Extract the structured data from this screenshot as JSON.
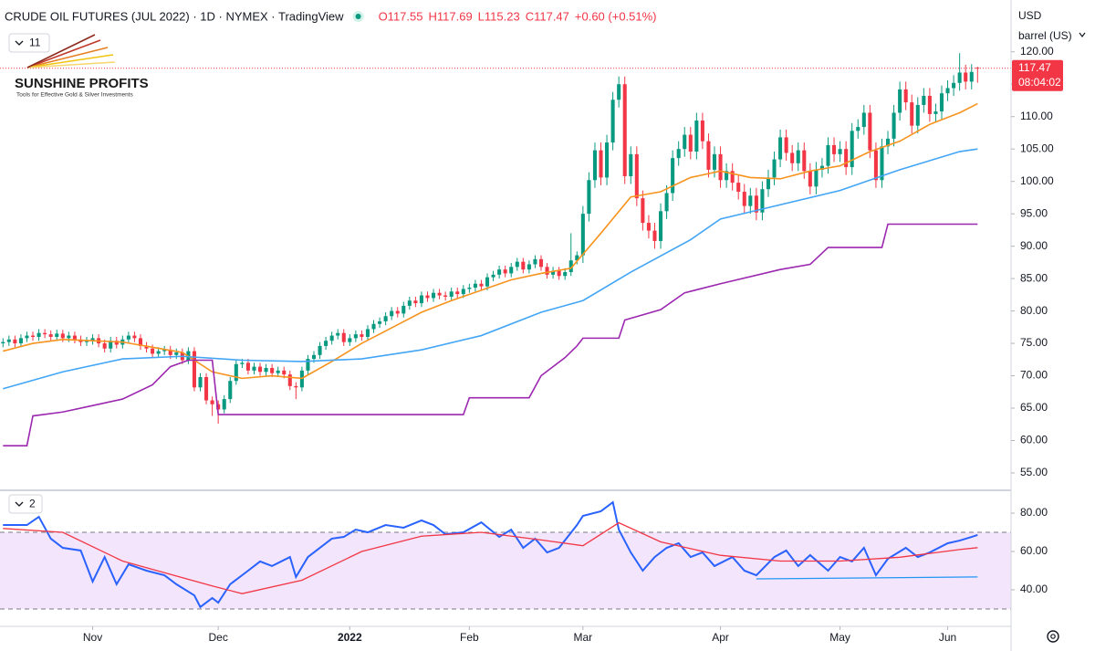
{
  "logo": {
    "name": "SUNSHINE PROFITS",
    "tagline": "Tools for Effective Gold & Silver Investments"
  },
  "chart_data": [
    {
      "type": "candlestick",
      "title": "CRUDE OIL FUTURES (JUL 2022) · 1D · NYMEX · TradingView",
      "legend_values": [
        "O117.55",
        "H117.69",
        "L115.23",
        "C117.47",
        "+0.60 (+0.51%)"
      ],
      "currency": "USD",
      "unit": "barrel (US)",
      "indicator_count": "11",
      "countdown": "08:04:02",
      "colors": {
        "up": "#089981",
        "down": "#f23645",
        "legend": "#f23645"
      },
      "xlim": [
        -0.5,
        168.6
      ],
      "xticks": [
        {
          "value": 15,
          "label": "Nov"
        },
        {
          "value": 36,
          "label": "Dec"
        },
        {
          "value": 58,
          "label": "2022"
        },
        {
          "value": 78,
          "label": "Feb"
        },
        {
          "value": 97,
          "label": "Mar"
        },
        {
          "value": 120,
          "label": "Apr"
        },
        {
          "value": 140,
          "label": "May"
        },
        {
          "value": 158,
          "label": "Jun"
        }
      ],
      "ylim": [
        52.6,
        128
      ],
      "yticks": [
        {
          "value": 55,
          "label": "55.00"
        },
        {
          "value": 60,
          "label": "60.00"
        },
        {
          "value": 65,
          "label": "65.00"
        },
        {
          "value": 70,
          "label": "70.00"
        },
        {
          "value": 75,
          "label": "75.00"
        },
        {
          "value": 80,
          "label": "80.00"
        },
        {
          "value": 85,
          "label": "85.00"
        },
        {
          "value": 90,
          "label": "90.00"
        },
        {
          "value": 95,
          "label": "95.00"
        },
        {
          "value": 100,
          "label": "100.00"
        },
        {
          "value": 105,
          "label": "105.00"
        },
        {
          "value": 110,
          "label": "110.00"
        },
        {
          "value": 115,
          "label": "115.00"
        },
        {
          "value": 120,
          "label": "120.00"
        }
      ],
      "open": [
        75.0,
        75.2,
        75.6,
        75.0,
        75.8,
        76.2,
        76.0,
        76.6,
        76.4,
        76.0,
        76.5,
        75.8,
        76.2,
        75.6,
        75.2,
        75.4,
        75.8,
        75.0,
        74.2,
        75.4,
        74.8,
        75.6,
        76.2,
        75.8,
        74.6,
        74.2,
        73.4,
        73.8,
        74.0,
        73.2,
        73.6,
        72.4,
        73.8,
        68.2,
        69.8,
        66.2,
        65.6,
        64.8,
        66.4,
        69.2,
        71.8,
        72.0,
        70.8,
        71.4,
        70.6,
        71.2,
        70.4,
        70.8,
        70.2,
        68.4,
        68.2,
        70.8,
        72.6,
        73.2,
        74.6,
        75.4,
        76.2,
        76.6,
        75.2,
        75.8,
        76.4,
        76.0,
        77.2,
        78.0,
        78.4,
        79.2,
        80.0,
        79.6,
        80.8,
        81.6,
        81.2,
        82.4,
        82.0,
        82.8,
        82.4,
        82.2,
        83.0,
        82.6,
        83.4,
        83.6,
        84.2,
        83.8,
        85.2,
        85.6,
        86.4,
        85.8,
        86.8,
        87.6,
        86.4,
        87.2,
        88.0,
        86.8,
        85.6,
        86.2,
        85.4,
        86.0,
        87.8,
        88.6,
        95.0,
        100.2,
        104.8,
        100.6,
        106.0,
        112.6,
        115.0,
        100.8,
        104.2,
        97.4,
        93.6,
        92.4,
        90.8,
        95.4,
        98.2,
        103.6,
        105.0,
        107.2,
        104.6,
        109.4,
        106.2,
        101.8,
        104.2,
        100.2,
        101.6,
        99.8,
        98.4,
        96.2,
        97.8,
        95.2,
        98.8,
        100.6,
        103.4,
        106.8,
        104.4,
        102.8,
        104.8,
        101.6,
        99.2,
        101.8,
        102.4,
        105.6,
        104.2,
        105.0,
        102.2,
        107.8,
        108.4,
        110.6,
        104.8,
        100.2,
        105.4,
        106.6,
        110.6,
        114.2,
        112.2,
        108.6,
        111.8,
        113.2,
        110.4,
        110.8,
        113.6,
        114.4,
        115.2,
        116.8,
        115.4,
        117.55
      ],
      "high": [
        75.8,
        76.2,
        76.2,
        76.4,
        76.8,
        76.8,
        77.2,
        77.2,
        77.0,
        77.1,
        77.1,
        76.8,
        76.8,
        76.2,
        76.0,
        76.4,
        76.4,
        75.6,
        76.0,
        76.0,
        76.2,
        76.8,
        76.8,
        76.4,
        75.2,
        74.8,
        74.4,
        74.6,
        74.6,
        74.2,
        74.2,
        74.4,
        74.4,
        70.4,
        70.4,
        66.8,
        66.2,
        67.0,
        69.8,
        72.4,
        72.6,
        72.6,
        72.0,
        72.0,
        71.8,
        71.8,
        71.4,
        71.4,
        70.8,
        69.0,
        71.4,
        73.2,
        73.8,
        75.2,
        76.0,
        76.8,
        77.2,
        77.2,
        76.4,
        77.0,
        77.0,
        77.8,
        78.6,
        79.0,
        79.8,
        80.6,
        80.6,
        81.4,
        82.2,
        82.2,
        83.0,
        83.0,
        83.4,
        83.4,
        83.0,
        83.6,
        83.6,
        84.0,
        84.2,
        84.8,
        84.8,
        85.8,
        86.2,
        87.0,
        87.0,
        87.4,
        88.2,
        88.2,
        87.8,
        88.6,
        88.6,
        87.4,
        86.8,
        86.8,
        86.6,
        92.0,
        89.2,
        96.2,
        101.4,
        106.0,
        106.0,
        107.2,
        113.8,
        116.2,
        116.2,
        105.4,
        105.4,
        98.6,
        94.8,
        93.6,
        96.6,
        99.4,
        104.8,
        106.2,
        108.4,
        108.4,
        110.6,
        110.6,
        107.4,
        105.4,
        105.4,
        102.8,
        102.8,
        101.0,
        99.6,
        99.0,
        99.0,
        100.0,
        101.8,
        104.6,
        108.0,
        108.0,
        105.6,
        106.0,
        106.0,
        102.8,
        103.0,
        103.6,
        106.8,
        106.8,
        106.2,
        106.2,
        109.0,
        109.6,
        111.8,
        111.8,
        106.0,
        106.6,
        107.8,
        111.8,
        115.4,
        115.4,
        113.4,
        113.0,
        114.4,
        114.4,
        112.0,
        114.8,
        115.6,
        116.4,
        119.8,
        118.0,
        118.1,
        117.69
      ],
      "low": [
        74.4,
        74.6,
        74.4,
        74.4,
        75.2,
        75.4,
        75.4,
        75.8,
        75.4,
        75.4,
        75.2,
        75.2,
        75.0,
        74.6,
        74.6,
        74.8,
        74.4,
        73.6,
        73.6,
        74.2,
        74.2,
        75.0,
        75.2,
        74.0,
        73.6,
        72.8,
        72.8,
        73.2,
        72.6,
        72.6,
        71.8,
        71.8,
        67.6,
        67.6,
        65.6,
        63.8,
        62.6,
        64.2,
        65.8,
        68.6,
        71.2,
        70.2,
        70.2,
        70.0,
        70.0,
        69.8,
        69.8,
        69.6,
        67.8,
        66.4,
        67.6,
        70.2,
        72.0,
        72.6,
        74.0,
        74.8,
        75.6,
        74.6,
        74.6,
        75.2,
        75.4,
        75.4,
        76.6,
        77.4,
        77.8,
        78.6,
        79.0,
        79.0,
        80.2,
        80.6,
        80.6,
        81.4,
        81.4,
        81.8,
        81.6,
        81.6,
        82.0,
        82.0,
        82.8,
        83.0,
        83.2,
        83.2,
        84.6,
        85.0,
        85.2,
        85.2,
        86.2,
        85.8,
        85.8,
        86.6,
        86.2,
        85.0,
        85.0,
        84.8,
        84.8,
        85.4,
        87.2,
        87.4,
        93.8,
        99.0,
        99.4,
        99.4,
        104.8,
        111.4,
        99.6,
        99.6,
        96.2,
        92.4,
        91.2,
        89.6,
        89.6,
        94.2,
        97.0,
        102.4,
        103.8,
        103.4,
        103.4,
        105.0,
        100.6,
        100.6,
        99.0,
        99.0,
        98.6,
        97.2,
        95.0,
        95.0,
        94.0,
        94.0,
        97.6,
        99.4,
        102.2,
        103.2,
        101.6,
        101.6,
        100.4,
        98.0,
        98.0,
        100.6,
        101.2,
        103.0,
        103.0,
        101.0,
        101.0,
        106.6,
        107.2,
        103.6,
        99.0,
        99.0,
        104.2,
        105.4,
        109.4,
        111.0,
        107.4,
        107.4,
        110.6,
        109.2,
        109.2,
        109.6,
        112.4,
        113.2,
        114.0,
        114.2,
        114.2,
        115.23
      ],
      "close": [
        75.2,
        75.6,
        75.0,
        75.8,
        76.2,
        76.0,
        76.6,
        76.4,
        76.0,
        76.5,
        75.8,
        76.2,
        75.6,
        75.2,
        75.4,
        75.8,
        75.0,
        74.2,
        75.4,
        74.8,
        75.6,
        76.2,
        75.8,
        74.6,
        74.2,
        73.4,
        73.8,
        74.0,
        73.2,
        73.6,
        72.4,
        73.8,
        68.2,
        69.8,
        66.2,
        65.6,
        64.8,
        66.4,
        69.2,
        71.8,
        72.0,
        70.8,
        71.4,
        70.6,
        71.2,
        70.4,
        70.8,
        70.2,
        68.4,
        68.2,
        70.8,
        72.6,
        73.2,
        74.6,
        75.4,
        76.2,
        76.6,
        75.2,
        75.8,
        76.4,
        76.0,
        77.2,
        78.0,
        78.4,
        79.2,
        80.0,
        79.6,
        80.8,
        81.6,
        81.2,
        82.4,
        82.0,
        82.8,
        82.4,
        82.2,
        83.0,
        82.6,
        83.4,
        83.6,
        84.2,
        83.8,
        85.2,
        85.6,
        86.4,
        85.8,
        86.8,
        87.6,
        86.4,
        87.2,
        88.0,
        86.8,
        85.6,
        86.2,
        85.4,
        86.0,
        87.8,
        88.6,
        95.0,
        100.2,
        104.8,
        100.6,
        106.0,
        112.6,
        115.0,
        100.8,
        104.2,
        97.4,
        93.6,
        92.4,
        90.8,
        95.4,
        98.2,
        103.6,
        105.0,
        107.2,
        104.6,
        109.4,
        106.2,
        101.8,
        104.2,
        100.2,
        101.6,
        99.8,
        98.4,
        96.2,
        97.8,
        95.2,
        98.8,
        100.6,
        103.4,
        106.8,
        104.4,
        102.8,
        104.8,
        101.6,
        99.2,
        101.8,
        102.4,
        105.6,
        104.2,
        105.0,
        102.2,
        107.8,
        108.4,
        110.6,
        104.8,
        100.2,
        105.4,
        106.6,
        110.6,
        114.2,
        112.2,
        108.6,
        111.8,
        113.2,
        110.4,
        110.8,
        113.6,
        114.4,
        115.2,
        116.8,
        115.4,
        116.9,
        117.47
      ],
      "overlays": [
        {
          "color": "#f7931e",
          "x": [
            0,
            5,
            10,
            15,
            20,
            25,
            30,
            35,
            40,
            45,
            50,
            55,
            60,
            65,
            70,
            75,
            80,
            85,
            90,
            95,
            100,
            105,
            110,
            115,
            120,
            125,
            130,
            135,
            140,
            145,
            150,
            155,
            160,
            163
          ],
          "values": [
            73.8,
            75.0,
            75.6,
            75.4,
            75.2,
            74.4,
            73.6,
            70.6,
            69.6,
            70.0,
            69.6,
            72.2,
            75.0,
            77.4,
            79.8,
            81.6,
            83.2,
            84.8,
            85.8,
            86.6,
            92.0,
            97.6,
            98.4,
            100.6,
            101.6,
            100.6,
            100.4,
            101.6,
            102.4,
            104.6,
            106.2,
            108.8,
            110.6,
            112.0
          ]
        },
        {
          "color": "#42a5f5",
          "x": [
            0,
            10,
            20,
            30,
            40,
            50,
            60,
            70,
            80,
            90,
            97,
            105,
            115,
            120,
            130,
            140,
            150,
            160,
            163
          ],
          "values": [
            68.0,
            70.6,
            72.6,
            73.0,
            72.4,
            72.2,
            72.6,
            74.0,
            76.2,
            79.8,
            81.6,
            86.0,
            91.0,
            94.2,
            96.4,
            98.6,
            101.8,
            104.6,
            105.0
          ]
        },
        {
          "color": "#9c27b0",
          "x": [
            0,
            4,
            5,
            10,
            15,
            20,
            25,
            28,
            31,
            35,
            36,
            77,
            78,
            88,
            90,
            94,
            96,
            97,
            103,
            104,
            110,
            114,
            120,
            130,
            135,
            138,
            147,
            148,
            163
          ],
          "values": [
            59.2,
            59.2,
            63.8,
            64.4,
            65.4,
            66.4,
            68.6,
            71.4,
            72.4,
            72.4,
            64.0,
            64.0,
            66.6,
            66.6,
            70.0,
            72.8,
            74.6,
            75.8,
            75.8,
            78.6,
            80.2,
            82.8,
            84.2,
            86.4,
            87.2,
            89.8,
            89.8,
            93.4,
            93.4
          ]
        }
      ]
    },
    {
      "type": "line",
      "indicator_count": "2",
      "xlim": [
        -0.5,
        168.6
      ],
      "ylim": [
        21.4,
        90.5
      ],
      "yticks": [
        {
          "value": 40,
          "label": "40.00"
        },
        {
          "value": 60,
          "label": "60.00"
        },
        {
          "value": 80,
          "label": "80.00"
        }
      ],
      "levels": [
        30,
        70
      ],
      "band_color": "#f3e5fb",
      "series": [
        {
          "color": "#2962ff",
          "x": [
            0,
            2,
            4,
            6,
            8,
            10,
            13,
            15,
            17,
            19,
            21,
            24,
            27,
            29,
            32,
            33,
            35,
            36,
            38,
            41,
            43,
            45,
            48,
            49,
            51,
            55,
            57,
            59,
            61,
            64,
            67,
            70,
            72,
            74,
            77,
            80,
            83,
            85,
            87,
            89,
            91,
            93,
            96,
            97,
            100,
            102,
            103,
            105,
            107,
            109,
            111,
            113,
            115,
            117,
            119,
            122,
            124,
            126,
            129,
            131,
            133,
            135,
            138,
            140,
            142,
            144,
            146,
            148,
            151,
            153,
            155,
            158,
            160,
            162,
            163
          ],
          "values": [
            73.8,
            73.8,
            73.8,
            78.1,
            66.7,
            61.9,
            60.5,
            44.3,
            57.1,
            42.9,
            53.3,
            50.0,
            47.6,
            42.9,
            37.1,
            31.0,
            35.7,
            33.3,
            42.9,
            50.0,
            54.8,
            52.4,
            57.1,
            46.7,
            57.1,
            66.7,
            67.6,
            71.4,
            70.0,
            73.8,
            72.4,
            76.2,
            73.8,
            69.0,
            70.0,
            75.2,
            67.6,
            71.4,
            61.9,
            66.7,
            59.5,
            61.9,
            73.8,
            78.6,
            81.0,
            85.7,
            71.4,
            59.5,
            50.0,
            57.1,
            61.9,
            64.3,
            57.1,
            59.5,
            52.4,
            57.1,
            50.0,
            47.6,
            57.1,
            60.5,
            52.4,
            58.1,
            50.0,
            57.1,
            54.8,
            61.9,
            47.6,
            56.2,
            61.9,
            57.1,
            59.5,
            64.3,
            65.7,
            67.6,
            68.6
          ]
        },
        {
          "color": "#f23645",
          "x": [
            0,
            10,
            20,
            35,
            40,
            50,
            60,
            70,
            80,
            90,
            97,
            103,
            110,
            120,
            130,
            140,
            150,
            160,
            163
          ],
          "values": [
            72,
            70,
            55,
            42,
            38,
            45,
            60,
            68,
            70,
            66,
            63,
            75,
            65,
            58,
            55,
            55,
            57,
            61,
            62
          ]
        },
        {
          "color": "#2196f3",
          "x": [
            126,
            163
          ],
          "values": [
            45.7,
            46.7
          ]
        }
      ]
    }
  ]
}
